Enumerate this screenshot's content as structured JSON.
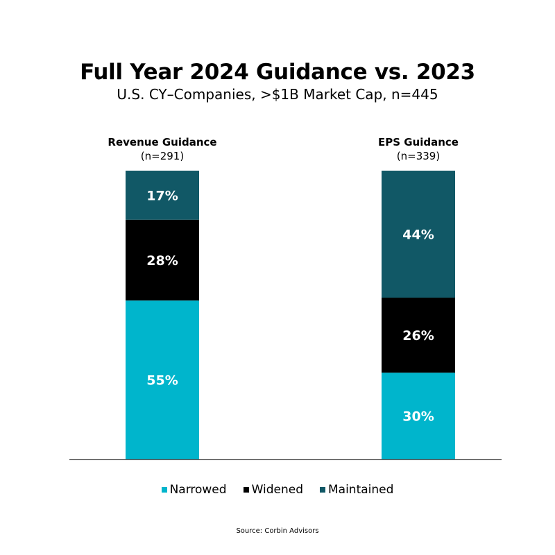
{
  "chart_data": {
    "type": "bar",
    "stacked": true,
    "title": "Full Year 2024 Guidance vs. 2023",
    "subtitle": "U.S. CY–Companies, >$1B Market Cap, n=445",
    "categories": [
      {
        "name": "Revenue Guidance",
        "n": "(n=291)"
      },
      {
        "name": "EPS Guidance",
        "n": "(n=339)"
      }
    ],
    "series": [
      {
        "name": "Narrowed",
        "color": "#00b5cc",
        "values": [
          55,
          30
        ],
        "labels": [
          "55%",
          "30%"
        ]
      },
      {
        "name": "Widened",
        "color": "#000000",
        "values": [
          28,
          26
        ],
        "labels": [
          "28%",
          "26%"
        ]
      },
      {
        "name": "Maintained",
        "color": "#115866",
        "values": [
          17,
          44
        ],
        "labels": [
          "17%",
          "44%"
        ]
      }
    ],
    "ylim": [
      0,
      100
    ],
    "legend_position": "bottom",
    "grid": false,
    "source": "Source: Corbin Advisors"
  }
}
